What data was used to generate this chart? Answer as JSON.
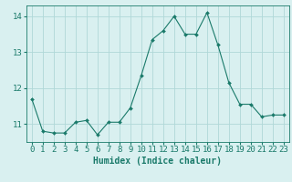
{
  "x": [
    0,
    1,
    2,
    3,
    4,
    5,
    6,
    7,
    8,
    9,
    10,
    11,
    12,
    13,
    14,
    15,
    16,
    17,
    18,
    19,
    20,
    21,
    22,
    23
  ],
  "y": [
    11.7,
    10.8,
    10.75,
    10.75,
    11.05,
    11.1,
    10.7,
    11.05,
    11.05,
    11.45,
    12.35,
    13.35,
    13.6,
    14.0,
    13.5,
    13.5,
    14.1,
    13.2,
    12.15,
    11.55,
    11.55,
    11.2,
    11.25,
    11.25
  ],
  "line_color": "#1a7a6a",
  "marker": "D",
  "marker_size": 2.0,
  "bg_color": "#d9f0f0",
  "grid_color": "#b0d8d8",
  "axis_color": "#1a7a6a",
  "xlabel": "Humidex (Indice chaleur)",
  "ylabel": "",
  "xlim": [
    -0.5,
    23.5
  ],
  "ylim": [
    10.5,
    14.3
  ],
  "yticks": [
    11,
    12,
    13,
    14
  ],
  "xticks": [
    0,
    1,
    2,
    3,
    4,
    5,
    6,
    7,
    8,
    9,
    10,
    11,
    12,
    13,
    14,
    15,
    16,
    17,
    18,
    19,
    20,
    21,
    22,
    23
  ],
  "title": "",
  "xlabel_fontsize": 7.0,
  "tick_fontsize": 6.5,
  "linewidth": 0.8
}
